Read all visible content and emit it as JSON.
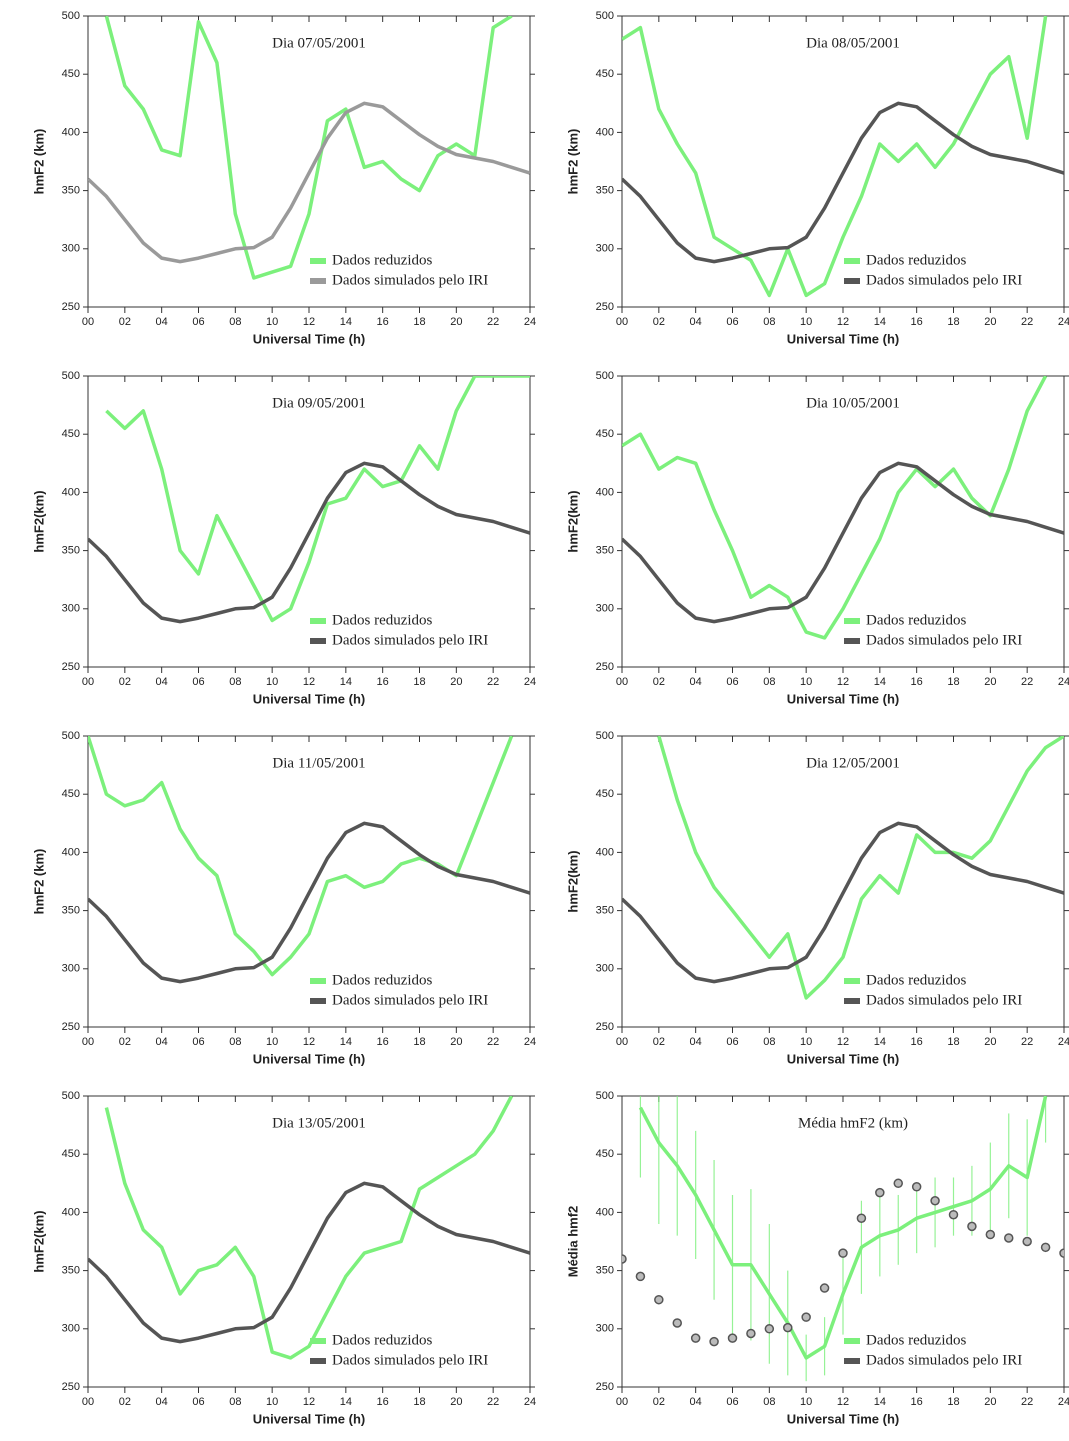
{
  "chart_data": [
    {
      "type": "line",
      "title": "Dia 07/05/2001",
      "xlabel": "Universal Time (h)",
      "ylabel": "hmF2 (km)",
      "x": [
        0,
        1,
        2,
        3,
        4,
        5,
        6,
        7,
        8,
        9,
        10,
        11,
        12,
        13,
        14,
        15,
        16,
        17,
        18,
        19,
        20,
        21,
        22,
        23,
        24
      ],
      "xlim": [
        0,
        24
      ],
      "ylim": [
        250,
        500
      ],
      "xticks": [
        {
          "value": 0,
          "label": "00"
        },
        {
          "value": 2,
          "label": "02"
        },
        {
          "value": 4,
          "label": "04"
        },
        {
          "value": 6,
          "label": "06"
        },
        {
          "value": 8,
          "label": "08"
        },
        {
          "value": 10,
          "label": "10"
        },
        12,
        14,
        16,
        18,
        20,
        22,
        24
      ],
      "yticks": [
        250,
        300,
        350,
        400,
        450,
        500
      ],
      "series": [
        {
          "name": "Dados reduzidos",
          "color": "#7cf07c",
          "values": [
            null,
            500,
            440,
            420,
            385,
            380,
            495,
            460,
            330,
            275,
            280,
            285,
            330,
            410,
            420,
            370,
            375,
            360,
            350,
            380,
            390,
            380,
            490,
            500,
            null
          ]
        },
        {
          "name": "Dados simulados pelo IRI",
          "color": "#9a9a9a",
          "values": [
            360,
            345,
            325,
            305,
            292,
            289,
            292,
            296,
            300,
            301,
            310,
            335,
            365,
            395,
            417,
            425,
            422,
            410,
            398,
            388,
            381,
            378,
            375,
            370,
            365
          ]
        }
      ]
    },
    {
      "type": "line",
      "title": "Dia 08/05/2001",
      "xlabel": "Universal Time (h)",
      "ylabel": "hmF2 (km)",
      "x": [
        0,
        1,
        2,
        3,
        4,
        5,
        6,
        7,
        8,
        9,
        10,
        11,
        12,
        13,
        14,
        15,
        16,
        17,
        18,
        19,
        20,
        21,
        22,
        23,
        24
      ],
      "xlim": [
        0,
        24
      ],
      "ylim": [
        250,
        500
      ],
      "xticks": [
        {
          "value": 0,
          "label": "00"
        },
        {
          "value": 2,
          "label": "02"
        },
        {
          "value": 4,
          "label": "04"
        },
        {
          "value": 6,
          "label": "06"
        },
        {
          "value": 8,
          "label": "08"
        },
        {
          "value": 10,
          "label": "10"
        },
        12,
        14,
        16,
        18,
        20,
        22,
        24
      ],
      "yticks": [
        250,
        300,
        350,
        400,
        450,
        500
      ],
      "series": [
        {
          "name": "Dados reduzidos",
          "color": "#7cf07c",
          "values": [
            480,
            490,
            420,
            390,
            365,
            310,
            300,
            290,
            260,
            300,
            260,
            270,
            310,
            345,
            390,
            375,
            390,
            370,
            390,
            420,
            450,
            465,
            395,
            500,
            null
          ]
        },
        {
          "name": "Dados simulados pelo IRI",
          "color": "#555555",
          "values": [
            360,
            345,
            325,
            305,
            292,
            289,
            292,
            296,
            300,
            301,
            310,
            335,
            365,
            395,
            417,
            425,
            422,
            410,
            398,
            388,
            381,
            378,
            375,
            370,
            365
          ]
        }
      ]
    },
    {
      "type": "line",
      "title": "Dia 09/05/2001",
      "xlabel": "Universal Time (h)",
      "ylabel": "hmF2(km)",
      "x": [
        0,
        1,
        2,
        3,
        4,
        5,
        6,
        7,
        8,
        9,
        10,
        11,
        12,
        13,
        14,
        15,
        16,
        17,
        18,
        19,
        20,
        21,
        22,
        23,
        24
      ],
      "xlim": [
        0,
        24
      ],
      "ylim": [
        250,
        500
      ],
      "xticks": [
        {
          "value": 0,
          "label": "00"
        },
        {
          "value": 2,
          "label": "02"
        },
        {
          "value": 4,
          "label": "04"
        },
        {
          "value": 6,
          "label": "06"
        },
        {
          "value": 8,
          "label": "08"
        },
        {
          "value": 10,
          "label": "10"
        },
        12,
        14,
        16,
        18,
        20,
        22,
        24
      ],
      "yticks": [
        250,
        300,
        350,
        400,
        450,
        500
      ],
      "series": [
        {
          "name": "Dados reduzidos",
          "color": "#7cf07c",
          "values": [
            null,
            470,
            455,
            470,
            420,
            350,
            330,
            380,
            350,
            320,
            290,
            300,
            340,
            390,
            395,
            420,
            405,
            410,
            440,
            420,
            470,
            500,
            500,
            500,
            500
          ]
        },
        {
          "name": "Dados simulados pelo IRI",
          "color": "#555555",
          "values": [
            360,
            345,
            325,
            305,
            292,
            289,
            292,
            296,
            300,
            301,
            310,
            335,
            365,
            395,
            417,
            425,
            422,
            410,
            398,
            388,
            381,
            378,
            375,
            370,
            365
          ]
        }
      ]
    },
    {
      "type": "line",
      "title": "Dia 10/05/2001",
      "xlabel": "Universal Time (h)",
      "ylabel": "hmF2(km)",
      "x": [
        0,
        1,
        2,
        3,
        4,
        5,
        6,
        7,
        8,
        9,
        10,
        11,
        12,
        13,
        14,
        15,
        16,
        17,
        18,
        19,
        20,
        21,
        22,
        23,
        24
      ],
      "xlim": [
        0,
        24
      ],
      "ylim": [
        250,
        500
      ],
      "xticks": [
        {
          "value": 0,
          "label": "00"
        },
        {
          "value": 2,
          "label": "02"
        },
        {
          "value": 4,
          "label": "04"
        },
        {
          "value": 6,
          "label": "06"
        },
        {
          "value": 8,
          "label": "08"
        },
        {
          "value": 10,
          "label": "10"
        },
        12,
        14,
        16,
        18,
        20,
        22,
        24
      ],
      "yticks": [
        250,
        300,
        350,
        400,
        450,
        500
      ],
      "series": [
        {
          "name": "Dados reduzidos",
          "color": "#7cf07c",
          "values": [
            440,
            450,
            420,
            430,
            425,
            385,
            350,
            310,
            320,
            310,
            280,
            275,
            300,
            330,
            360,
            400,
            420,
            405,
            420,
            395,
            380,
            420,
            470,
            500,
            null
          ]
        },
        {
          "name": "Dados simulados pelo IRI",
          "color": "#555555",
          "values": [
            360,
            345,
            325,
            305,
            292,
            289,
            292,
            296,
            300,
            301,
            310,
            335,
            365,
            395,
            417,
            425,
            422,
            410,
            398,
            388,
            381,
            378,
            375,
            370,
            365
          ]
        }
      ]
    },
    {
      "type": "line",
      "title": "Dia 11/05/2001",
      "xlabel": "Universal Time (h)",
      "ylabel": "hmF2 (km)",
      "x": [
        0,
        1,
        2,
        3,
        4,
        5,
        6,
        7,
        8,
        9,
        10,
        11,
        12,
        13,
        14,
        15,
        16,
        17,
        18,
        19,
        20,
        21,
        22,
        23,
        24
      ],
      "xlim": [
        0,
        24
      ],
      "ylim": [
        250,
        500
      ],
      "xticks": [
        {
          "value": 0,
          "label": "00"
        },
        {
          "value": 2,
          "label": "02"
        },
        {
          "value": 4,
          "label": "04"
        },
        {
          "value": 6,
          "label": "06"
        },
        {
          "value": 8,
          "label": "08"
        },
        {
          "value": 10,
          "label": "10"
        },
        12,
        14,
        16,
        18,
        20,
        22,
        24
      ],
      "yticks": [
        250,
        300,
        350,
        400,
        450,
        500
      ],
      "series": [
        {
          "name": "Dados reduzidos",
          "color": "#7cf07c",
          "values": [
            500,
            450,
            440,
            445,
            460,
            420,
            395,
            380,
            330,
            315,
            295,
            310,
            330,
            375,
            380,
            370,
            375,
            390,
            395,
            390,
            380,
            420,
            460,
            500,
            null
          ]
        },
        {
          "name": "Dados simulados pelo IRI",
          "color": "#555555",
          "values": [
            360,
            345,
            325,
            305,
            292,
            289,
            292,
            296,
            300,
            301,
            310,
            335,
            365,
            395,
            417,
            425,
            422,
            410,
            398,
            388,
            381,
            378,
            375,
            370,
            365
          ]
        }
      ]
    },
    {
      "type": "line",
      "title": "Dia 12/05/2001",
      "xlabel": "Universal Time (h)",
      "ylabel": "hmF2(km)",
      "x": [
        0,
        1,
        2,
        3,
        4,
        5,
        6,
        7,
        8,
        9,
        10,
        11,
        12,
        13,
        14,
        15,
        16,
        17,
        18,
        19,
        20,
        21,
        22,
        23,
        24
      ],
      "xlim": [
        0,
        24
      ],
      "ylim": [
        250,
        500
      ],
      "xticks": [
        {
          "value": 0,
          "label": "00"
        },
        {
          "value": 2,
          "label": "02"
        },
        {
          "value": 4,
          "label": "04"
        },
        {
          "value": 6,
          "label": "06"
        },
        {
          "value": 8,
          "label": "08"
        },
        {
          "value": 10,
          "label": "10"
        },
        12,
        14,
        16,
        18,
        20,
        22,
        24
      ],
      "yticks": [
        250,
        300,
        350,
        400,
        450,
        500
      ],
      "series": [
        {
          "name": "Dados reduzidos",
          "color": "#7cf07c",
          "values": [
            null,
            null,
            500,
            445,
            400,
            370,
            350,
            330,
            310,
            330,
            275,
            290,
            310,
            360,
            380,
            365,
            415,
            400,
            400,
            395,
            410,
            440,
            470,
            490,
            500
          ]
        },
        {
          "name": "Dados simulados pelo IRI",
          "color": "#555555",
          "values": [
            360,
            345,
            325,
            305,
            292,
            289,
            292,
            296,
            300,
            301,
            310,
            335,
            365,
            395,
            417,
            425,
            422,
            410,
            398,
            388,
            381,
            378,
            375,
            370,
            365
          ]
        }
      ]
    },
    {
      "type": "line",
      "title": "Dia 13/05/2001",
      "xlabel": "Universal Time (h)",
      "ylabel": "hmF2(km)",
      "x": [
        0,
        1,
        2,
        3,
        4,
        5,
        6,
        7,
        8,
        9,
        10,
        11,
        12,
        13,
        14,
        15,
        16,
        17,
        18,
        19,
        20,
        21,
        22,
        23,
        24
      ],
      "xlim": [
        0,
        24
      ],
      "ylim": [
        250,
        500
      ],
      "xticks": [
        {
          "value": 0,
          "label": "00"
        },
        {
          "value": 2,
          "label": "02"
        },
        {
          "value": 4,
          "label": "04"
        },
        {
          "value": 6,
          "label": "06"
        },
        {
          "value": 8,
          "label": "08"
        },
        {
          "value": 10,
          "label": "10"
        },
        12,
        14,
        16,
        18,
        20,
        22,
        24
      ],
      "yticks": [
        250,
        300,
        350,
        400,
        450,
        500
      ],
      "series": [
        {
          "name": "Dados reduzidos",
          "color": "#7cf07c",
          "values": [
            null,
            490,
            425,
            385,
            370,
            330,
            350,
            355,
            370,
            345,
            280,
            275,
            285,
            315,
            345,
            365,
            370,
            375,
            420,
            430,
            440,
            450,
            470,
            500,
            null
          ]
        },
        {
          "name": "Dados simulados pelo IRI",
          "color": "#555555",
          "values": [
            360,
            345,
            325,
            305,
            292,
            289,
            292,
            296,
            300,
            301,
            310,
            335,
            365,
            395,
            417,
            425,
            422,
            410,
            398,
            388,
            381,
            378,
            375,
            370,
            365
          ]
        }
      ]
    },
    {
      "type": "line",
      "title": "Média hmF2 (km)",
      "xlabel": "Universal Time (h)",
      "ylabel": "Média hmf2",
      "x": [
        0,
        1,
        2,
        3,
        4,
        5,
        6,
        7,
        8,
        9,
        10,
        11,
        12,
        13,
        14,
        15,
        16,
        17,
        18,
        19,
        20,
        21,
        22,
        23,
        24
      ],
      "xlim": [
        0,
        24
      ],
      "ylim": [
        250,
        500
      ],
      "xticks": [
        {
          "value": 0,
          "label": "00"
        },
        {
          "value": 2,
          "label": "02"
        },
        {
          "value": 4,
          "label": "04"
        },
        {
          "value": 6,
          "label": "06"
        },
        {
          "value": 8,
          "label": "08"
        },
        {
          "value": 10,
          "label": "10"
        },
        12,
        14,
        16,
        18,
        20,
        22,
        24
      ],
      "yticks": [
        250,
        300,
        350,
        400,
        450,
        500
      ],
      "series": [
        {
          "name": "Dados reduzidos",
          "color": "#7cf07c",
          "values": [
            null,
            490,
            460,
            440,
            415,
            385,
            355,
            355,
            330,
            305,
            275,
            285,
            330,
            370,
            380,
            385,
            395,
            400,
            405,
            410,
            420,
            440,
            430,
            500,
            null
          ],
          "errors": [
            null,
            60,
            70,
            60,
            55,
            60,
            60,
            65,
            60,
            45,
            20,
            25,
            35,
            40,
            35,
            30,
            30,
            30,
            25,
            30,
            40,
            45,
            50,
            40,
            null
          ]
        },
        {
          "name": "Dados simulados pelo IRI",
          "color": "#555555",
          "marker": "circle",
          "values": [
            360,
            345,
            325,
            305,
            292,
            289,
            292,
            296,
            300,
            301,
            310,
            335,
            365,
            395,
            417,
            425,
            422,
            410,
            398,
            388,
            381,
            378,
            375,
            370,
            365
          ]
        }
      ]
    }
  ]
}
